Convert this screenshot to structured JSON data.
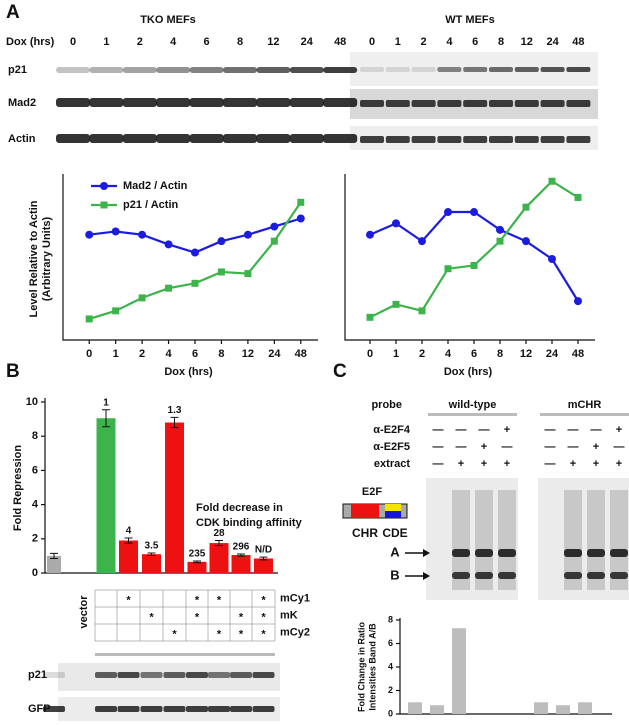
{
  "figure": {
    "panel_a": {
      "label": "A",
      "tko_title": "TKO MEFs",
      "wt_title": "WT MEFs",
      "dox_label": "Dox (hrs)",
      "tko_lanes": [
        0,
        1,
        2,
        4,
        6,
        8,
        12,
        24,
        48
      ],
      "wt_lanes": [
        0,
        1,
        2,
        4,
        6,
        8,
        12,
        24,
        48
      ],
      "blot_rows": [
        "p21",
        "Mad2",
        "Actin"
      ]
    },
    "panel_b": {
      "label": "B",
      "note": [
        "Fold decrease in",
        "CDK binding affinity"
      ],
      "mutants": [
        "mCy1",
        "mK",
        "mCy2"
      ],
      "stars": [
        [
          null,
          "*",
          null,
          null,
          "*",
          "*",
          null,
          "*"
        ],
        [
          null,
          null,
          "*",
          null,
          "*",
          null,
          "*",
          "*"
        ],
        [
          null,
          null,
          null,
          "*",
          null,
          "*",
          "*",
          "*"
        ]
      ],
      "blot_rows": [
        "p21",
        "GFP"
      ]
    },
    "panel_c": {
      "label": "C",
      "probe_label": "probe",
      "probes": [
        "wild-type",
        "mCHR"
      ],
      "rows": [
        {
          "label": "α-E2F4",
          "signs": [
            "—",
            "—",
            "—",
            "+",
            "—",
            "—",
            "—",
            "+"
          ]
        },
        {
          "label": "α-E2F5",
          "signs": [
            "—",
            "—",
            "+",
            "—",
            "—",
            "—",
            "+",
            "—"
          ]
        },
        {
          "label": "extract",
          "signs": [
            "—",
            "+",
            "+",
            "+",
            "—",
            "+",
            "+",
            "+"
          ]
        }
      ],
      "diagram_title": "E2F",
      "chr": "CHR",
      "cde": "CDE",
      "band_a": "A",
      "band_b": "B"
    }
  },
  "chart_data": [
    {
      "type": "line",
      "categories": [
        0,
        1,
        2,
        4,
        6,
        8,
        12,
        24,
        48
      ],
      "xlabel": "Dox (hrs)",
      "ylabel": [
        "Level Relative to Actin",
        "(Arbitrary Units)"
      ],
      "ylim": [
        0,
        10
      ],
      "legend": "upper left",
      "series": [
        {
          "name": "Mad2 / Actin",
          "color": "#1c1ce0",
          "marker": "circle",
          "values": [
            6.5,
            6.7,
            6.5,
            5.9,
            5.4,
            6.1,
            6.5,
            7.0,
            7.5
          ]
        },
        {
          "name": "p21 / Actin",
          "color": "#3cb44b",
          "marker": "square",
          "values": [
            1.3,
            1.8,
            2.6,
            3.2,
            3.5,
            4.2,
            4.1,
            6.1,
            8.5
          ]
        }
      ]
    },
    {
      "type": "line",
      "categories": [
        0,
        1,
        2,
        4,
        6,
        8,
        12,
        24,
        48
      ],
      "xlabel": "Dox (hrs)",
      "ylim": [
        0,
        10
      ],
      "series": [
        {
          "color": "#1c1ce0",
          "marker": "circle",
          "values": [
            6.5,
            7.2,
            6.1,
            7.9,
            7.9,
            6.8,
            6.1,
            5.0,
            2.4
          ]
        },
        {
          "color": "#3cb44b",
          "marker": "square",
          "values": [
            1.4,
            2.2,
            1.8,
            4.4,
            4.6,
            6.1,
            8.2,
            9.8,
            8.8
          ]
        }
      ]
    },
    {
      "type": "bar",
      "categories": [
        "vector",
        null,
        null,
        null,
        null,
        null,
        null,
        null,
        null
      ],
      "values": [
        1,
        9.05,
        1.9,
        1.1,
        8.8,
        0.65,
        1.75,
        1.05,
        0.85
      ],
      "errors": [
        0.15,
        0.5,
        0.15,
        0.07,
        0.3,
        0.05,
        0.15,
        0.06,
        0.08
      ],
      "colors": [
        "#aaaaaa",
        "#3cb44b",
        "#ee1111",
        "#ee1111",
        "#ee1111",
        "#ee1111",
        "#ee1111",
        "#ee1111",
        "#ee1111"
      ],
      "annotations": [
        null,
        "1",
        "4",
        "3.5",
        "1.3",
        "235",
        "28",
        "296",
        "N/D"
      ],
      "ylabel": "Fold Repression",
      "ylim": [
        0,
        10
      ],
      "yticks": [
        0,
        2,
        4,
        6,
        8,
        10
      ]
    },
    {
      "type": "bar",
      "categories": [
        null,
        null,
        null,
        null,
        null,
        null,
        null,
        null
      ],
      "values": [
        null,
        1,
        0.75,
        7.3,
        null,
        1,
        0.75,
        1
      ],
      "color": "#bdbdbd",
      "ylabel": [
        "Fold Change in Ratio",
        "Intensities Band A/B"
      ],
      "ylim": [
        0,
        8
      ],
      "yticks": [
        0,
        2,
        4,
        6,
        8
      ]
    }
  ]
}
